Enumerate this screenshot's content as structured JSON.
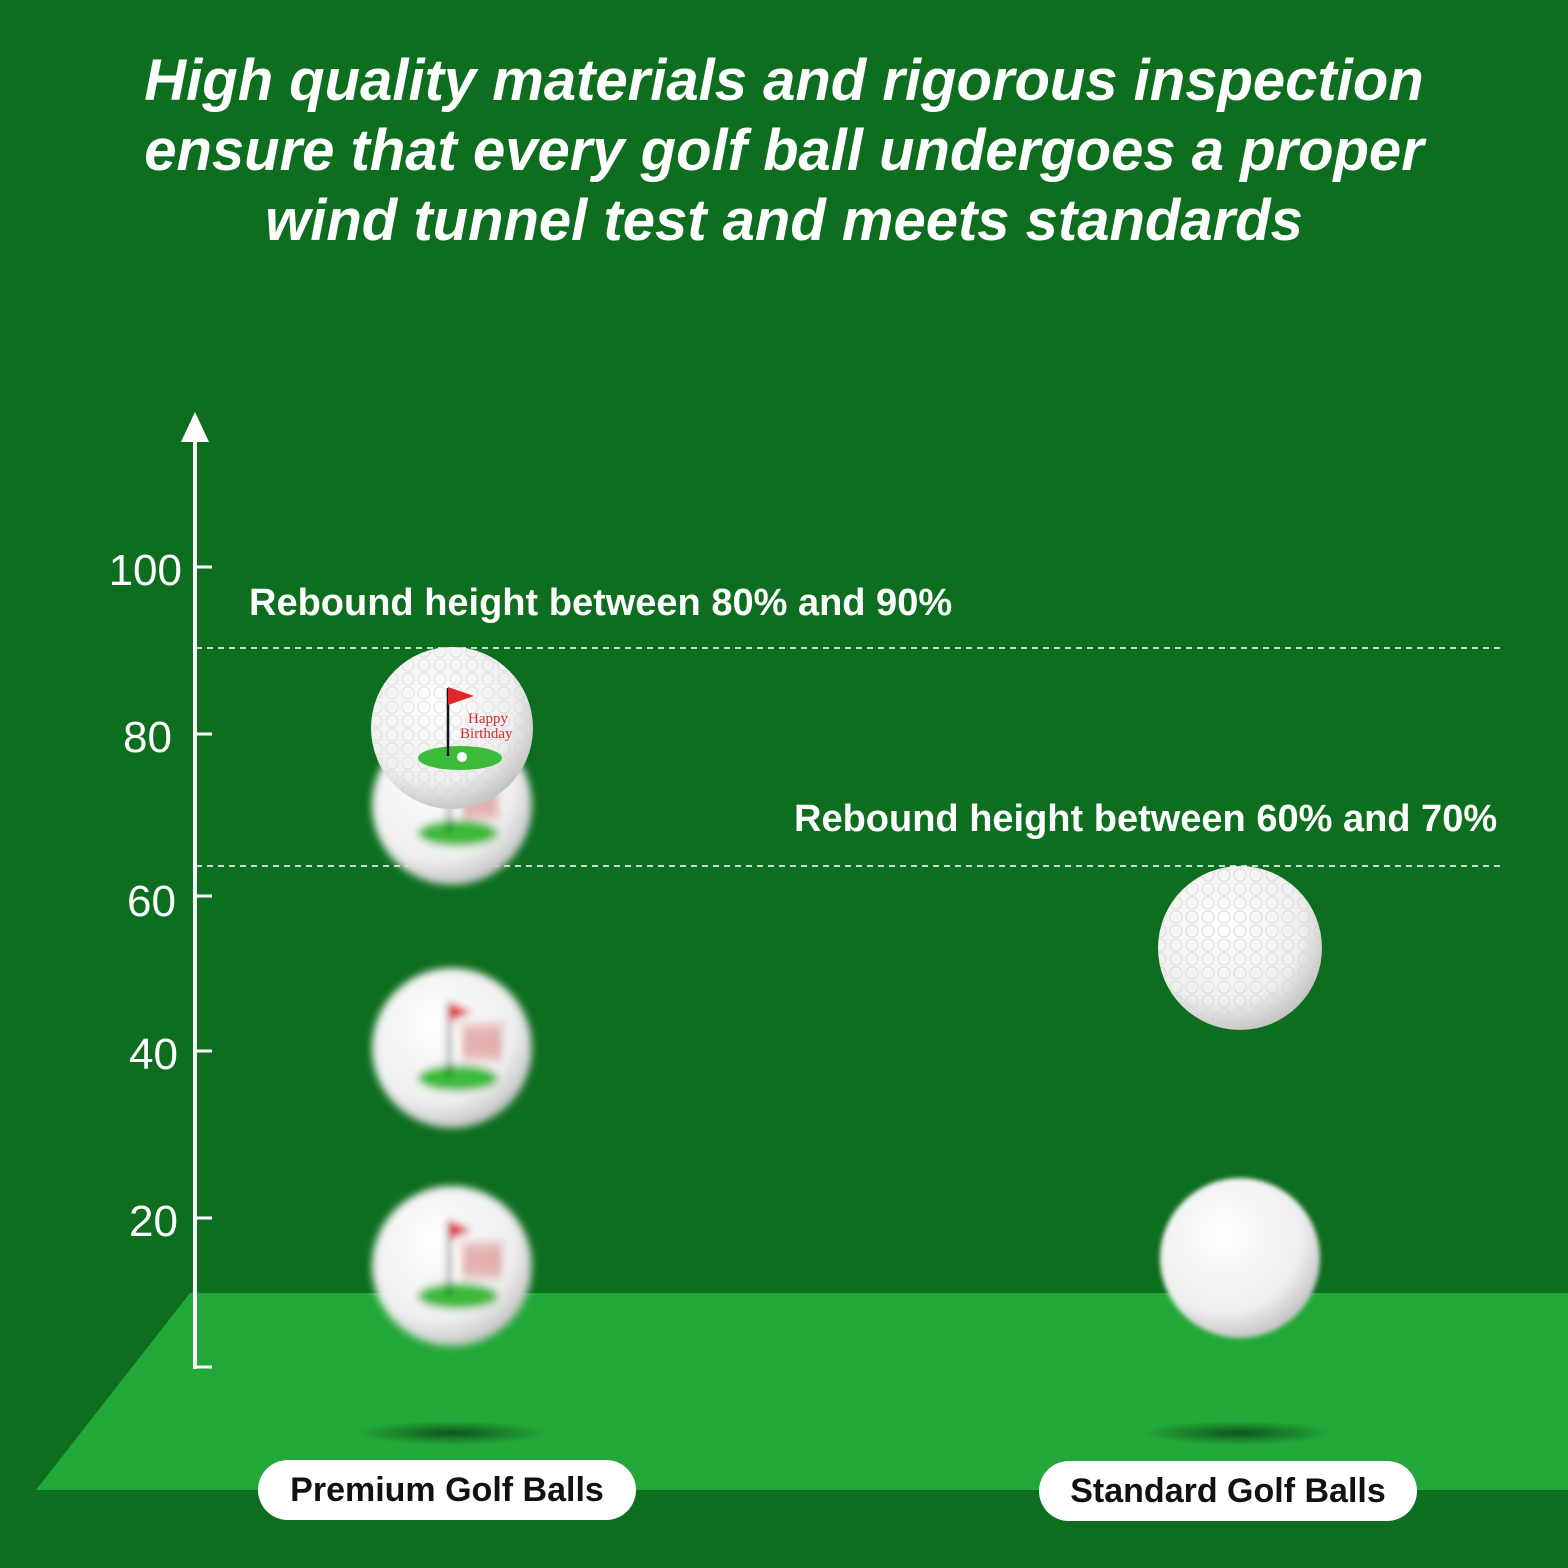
{
  "headline": {
    "line1": "High quality materials and rigorous inspection",
    "line2": "ensure that every golf ball undergoes a proper",
    "line3": "wind tunnel test and meets standards"
  },
  "axis": {
    "ticks": [
      "100",
      "80",
      "60",
      "40",
      "20"
    ]
  },
  "ranges": {
    "premium": "Rebound height between 80% and 90%",
    "standard": "Rebound height between 60% and 70%"
  },
  "ball_print": {
    "line1": "Happy",
    "line2": "Birthday"
  },
  "categories": {
    "premium": "Premium Golf Balls",
    "standard": "Standard Golf Balls"
  },
  "colors": {
    "background": "#0c6e1e",
    "floor": "#22a838",
    "flag": "#e0262a",
    "green": "#3dbb3a"
  },
  "icons": [
    "flag-icon",
    "golf-ball-icon",
    "axis-arrow-icon"
  ]
}
